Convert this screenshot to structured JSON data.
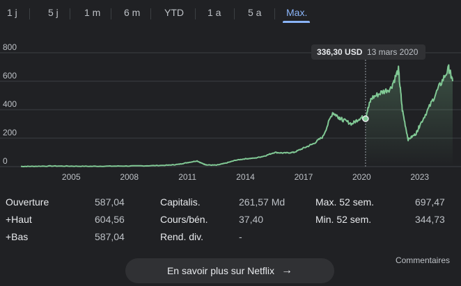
{
  "tabs": [
    {
      "label": "1 j"
    },
    {
      "label": "5 j"
    },
    {
      "label": "1 m"
    },
    {
      "label": "6 m"
    },
    {
      "label": "YTD"
    },
    {
      "label": "1 a"
    },
    {
      "label": "5 a"
    },
    {
      "label": "Max."
    }
  ],
  "active_tab": "Max.",
  "tooltip": {
    "price": "336,30 USD",
    "date": "13 mars 2020"
  },
  "stats": {
    "col1": [
      {
        "label": "Ouverture",
        "value": "587,04"
      },
      {
        "label": "+Haut",
        "value": "604,56"
      },
      {
        "label": "+Bas",
        "value": "587,04"
      }
    ],
    "col2": [
      {
        "label": "Capitalis.",
        "value": "261,57 Md"
      },
      {
        "label": "Cours/bén.",
        "value": "37,40"
      },
      {
        "label": "Rend. div.",
        "value": "-"
      }
    ],
    "col3": [
      {
        "label": "Max. 52 sem.",
        "value": "697,47"
      },
      {
        "label": "Min. 52 sem.",
        "value": "344,73"
      }
    ]
  },
  "cta": {
    "label": "En savoir plus sur Netflix",
    "icon": "arrow-right-icon"
  },
  "comments_label": "Commentaires",
  "colors": {
    "line": "#81c995",
    "accent": "#8ab4f8",
    "background": "#202124"
  },
  "chart_data": {
    "type": "area",
    "x": [
      2002.4,
      2003,
      2004,
      2005,
      2006,
      2007,
      2008,
      2009,
      2010,
      2010.5,
      2011,
      2011.5,
      2011.8,
      2012,
      2012.5,
      2013,
      2013.5,
      2014,
      2014.5,
      2015,
      2015.5,
      2016,
      2016.5,
      2017,
      2017.5,
      2018,
      2018.5,
      2018.8,
      2019,
      2019.5,
      2019.9,
      2020.2,
      2020.5,
      2021,
      2021.5,
      2021.9,
      2022.1,
      2022.4,
      2022.8,
      2023,
      2023.5,
      2024,
      2024.5,
      2024.7
    ],
    "y": [
      1,
      2,
      4,
      3,
      2,
      3,
      4,
      6,
      10,
      15,
      28,
      40,
      20,
      12,
      10,
      25,
      45,
      55,
      60,
      75,
      100,
      95,
      100,
      130,
      160,
      210,
      380,
      350,
      330,
      300,
      340,
      350,
      480,
      520,
      550,
      680,
      400,
      190,
      230,
      290,
      420,
      560,
      690,
      600
    ],
    "xticks": [
      "2005",
      "2008",
      "2011",
      "2014",
      "2017",
      "2020",
      "2023"
    ],
    "yticks": [
      "0",
      "200",
      "400",
      "600",
      "800"
    ],
    "ylim": [
      0,
      800
    ],
    "grid": true,
    "highlight": {
      "x": 2020.2,
      "y": 336.3
    }
  }
}
